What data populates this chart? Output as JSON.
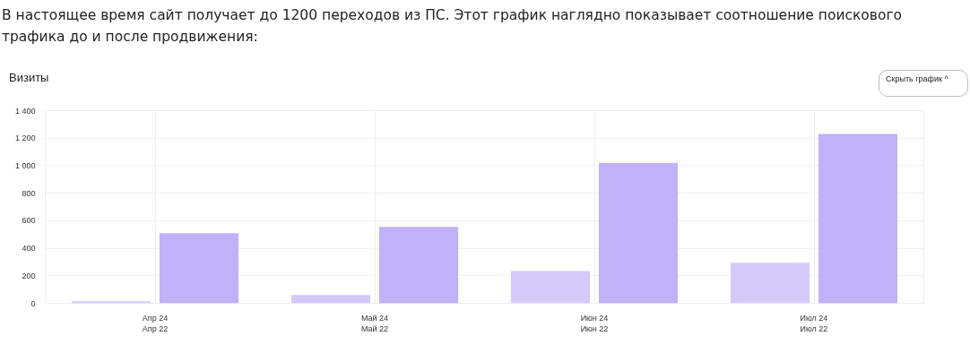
{
  "chart_data": {
    "type": "bar",
    "title": "Визиты",
    "annotations": [
      "В настоящее время сайт получает до 1200 переходов из ПС. Этот график наглядно показывает соотношение поискового трафика до и после продвижения:",
      "Скрыть график ^"
    ],
    "categories": [
      "Апр 24\nАпр 22",
      "Май 24\nМай 22",
      "Июн 24\nИюн 22",
      "Июл 24\nИюл 22"
    ],
    "series": [
      {
        "color": "#d5c9fa",
        "values": [
          15,
          60,
          235,
          295
        ]
      },
      {
        "color": "#c1b1f8",
        "values": [
          510,
          555,
          1020,
          1230
        ]
      }
    ],
    "ylim": [
      0,
      1400
    ],
    "yticks": [
      0,
      200,
      400,
      600,
      800,
      {
        "value": 1000,
        "label": "1 000"
      },
      {
        "value": 1200,
        "label": "1 200"
      },
      {
        "value": 1400,
        "label": "1 400"
      }
    ],
    "grid": true
  }
}
